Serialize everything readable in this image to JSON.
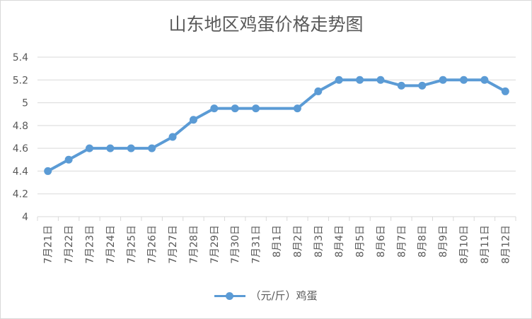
{
  "chart_data": {
    "type": "line",
    "title": "山东地区鸡蛋价格走势图",
    "categories": [
      "7月21日",
      "7月22日",
      "7月23日",
      "7月24日",
      "7月25日",
      "7月26日",
      "7月27日",
      "7月28日",
      "7月29日",
      "7月30日",
      "7月31日",
      "8月1日",
      "8月2日",
      "8月3日",
      "8月4日",
      "8月5日",
      "8月6日",
      "8月7日",
      "8月8日",
      "8月9日",
      "8月10日",
      "8月11日",
      "8月12日"
    ],
    "series": [
      {
        "name": "（元/斤）鸡蛋",
        "color": "#5b9bd5",
        "values": [
          4.4,
          4.5,
          4.6,
          4.6,
          4.6,
          4.6,
          4.7,
          4.85,
          4.95,
          4.95,
          4.95,
          null,
          4.95,
          5.1,
          5.2,
          5.2,
          5.2,
          5.15,
          5.15,
          5.2,
          5.2,
          5.2,
          5.1
        ]
      }
    ],
    "ylim": [
      4,
      5.4
    ],
    "yticks": [
      "4",
      "4.2",
      "4.4",
      "4.6",
      "4.8",
      "5",
      "5.2",
      "5.4"
    ],
    "grid": true,
    "legend_position": "bottom"
  }
}
